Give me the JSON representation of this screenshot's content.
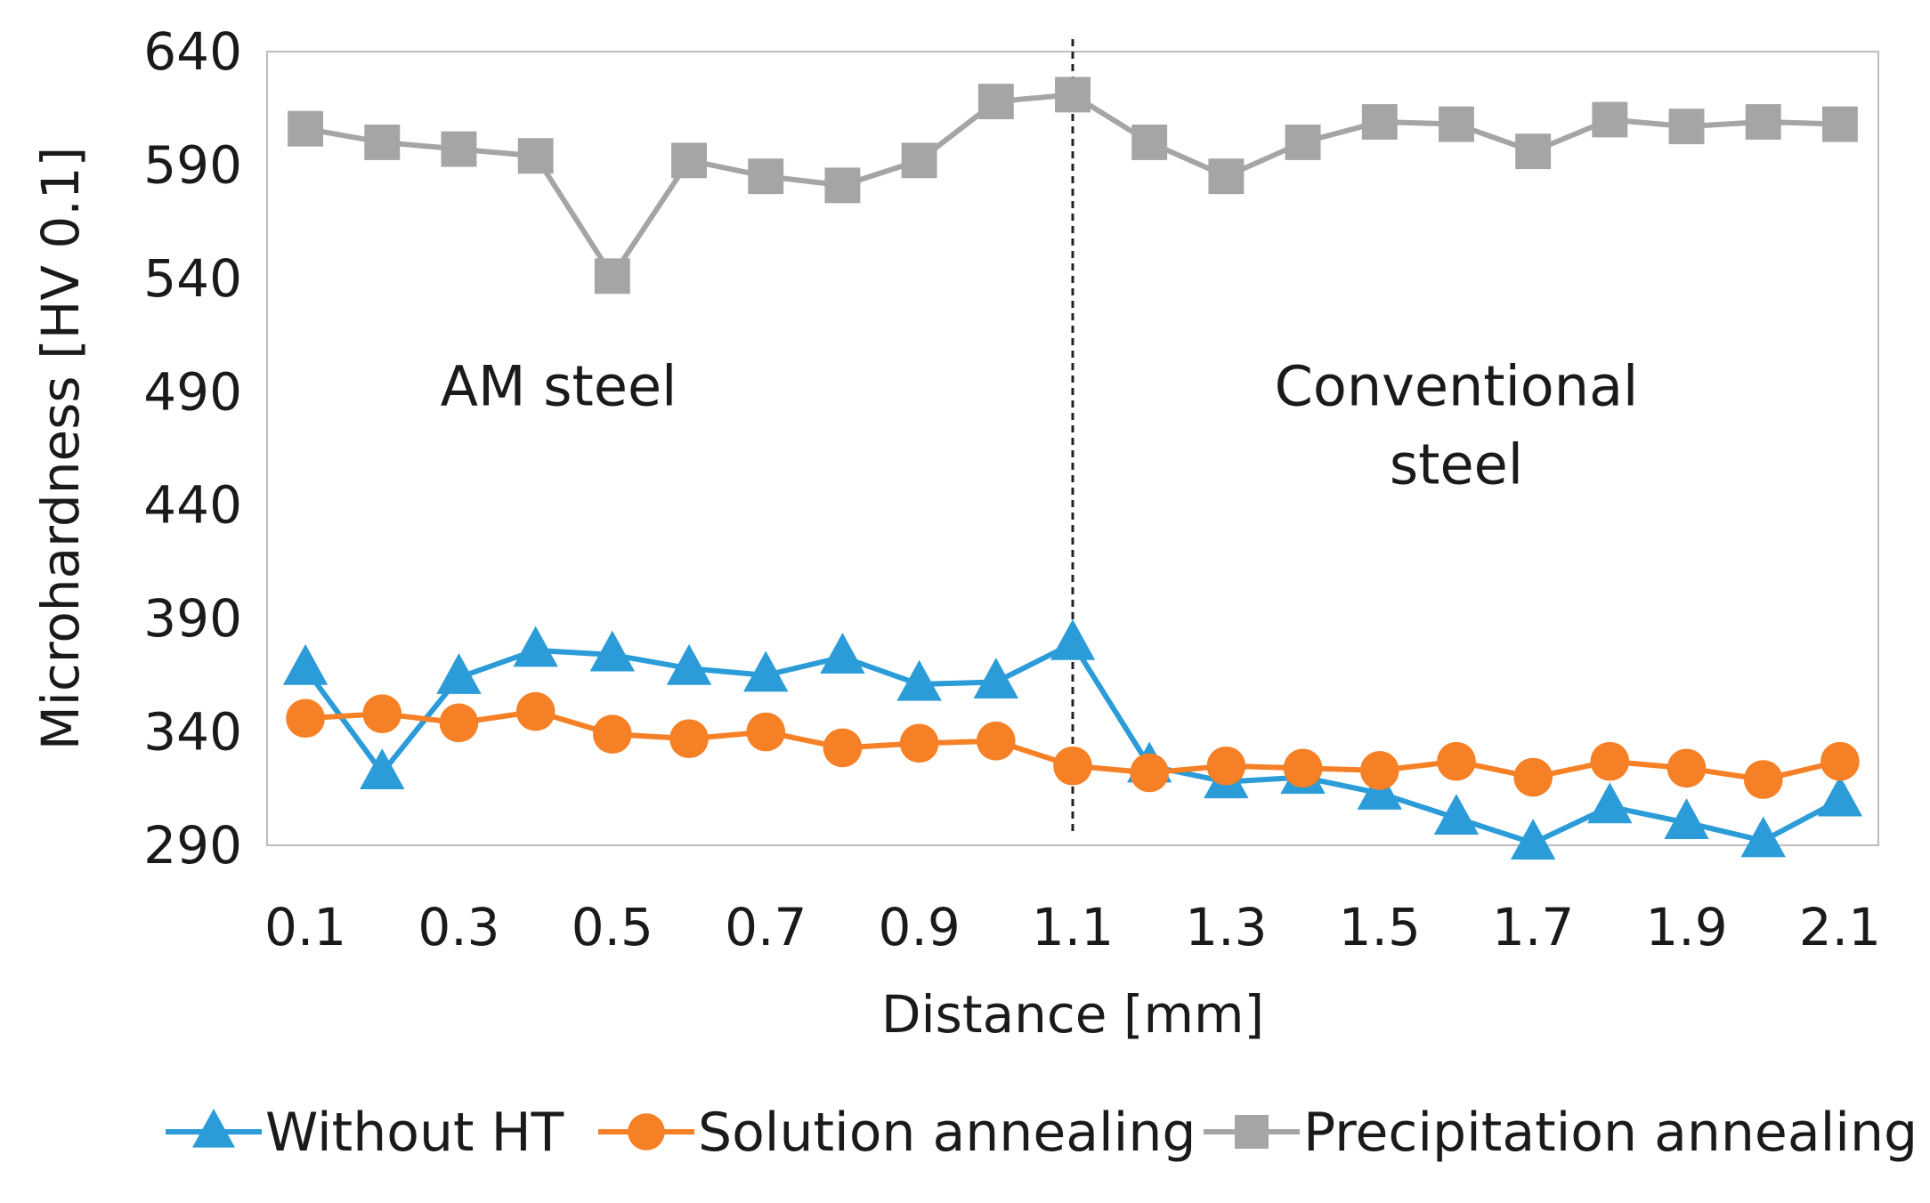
{
  "chart_data": {
    "type": "line",
    "title": "",
    "xlabel": "Distance [mm]",
    "ylabel": "Microhardness [HV 0.1]",
    "x": [
      0.1,
      0.2,
      0.3,
      0.4,
      0.5,
      0.6,
      0.7,
      0.8,
      0.9,
      1.0,
      1.1,
      1.2,
      1.3,
      1.4,
      1.5,
      1.6,
      1.7,
      1.8,
      1.9,
      2.0,
      2.1
    ],
    "xlim": [
      0.05,
      2.15
    ],
    "ylim": [
      290,
      640
    ],
    "xticks": [
      "0.1",
      "0.3",
      "0.5",
      "0.7",
      "0.9",
      "1.1",
      "1.3",
      "1.5",
      "1.7",
      "1.9",
      "2.1"
    ],
    "yticks": [
      "640",
      "590",
      "540",
      "490",
      "440",
      "390",
      "340",
      "290"
    ],
    "grid": false,
    "legend_position": "bottom",
    "vline_x": 1.1,
    "series": [
      {
        "name": "Without HT",
        "color": "#2b9cd8",
        "marker": "triangle",
        "values": [
          368,
          322,
          364,
          376,
          374,
          368,
          365,
          373,
          361,
          362,
          379,
          325,
          318,
          320,
          313,
          302,
          291,
          307,
          300,
          292,
          310
        ]
      },
      {
        "name": "Solution annealing",
        "color": "#f58025",
        "marker": "circle",
        "values": [
          346,
          348,
          344,
          349,
          339,
          337,
          340,
          333,
          335,
          336,
          325,
          322,
          325,
          324,
          323,
          327,
          320,
          327,
          324,
          319,
          327
        ]
      },
      {
        "name": "Precipitation annealing",
        "color": "#a5a5a5",
        "marker": "square",
        "values": [
          606,
          600,
          597,
          594,
          541,
          592,
          585,
          581,
          592,
          618,
          621,
          600,
          585,
          600,
          609,
          608,
          596,
          610,
          607,
          609,
          608
        ]
      }
    ],
    "annotations": [
      {
        "lines": [
          "AM steel"
        ],
        "x": 0.43,
        "y": 484
      },
      {
        "lines": [
          "Conventional",
          "steel"
        ],
        "x": 1.6,
        "y": 484
      }
    ]
  }
}
